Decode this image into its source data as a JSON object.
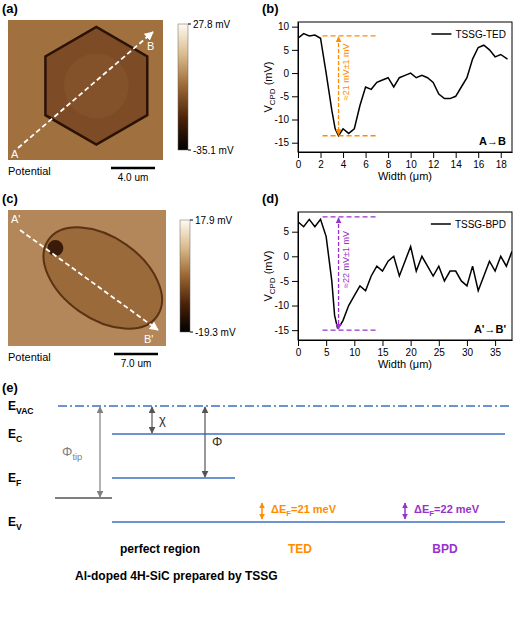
{
  "chart_data": [
    {
      "type": "line",
      "panel_label": "(b)",
      "x": [
        0,
        0.5,
        1,
        1.5,
        2,
        2.5,
        3,
        3.3,
        3.6,
        4,
        4.5,
        5,
        5.5,
        6,
        6.5,
        7,
        7.5,
        8,
        8.5,
        9,
        9.5,
        10,
        10.5,
        11,
        11.5,
        12,
        12.5,
        13,
        13.5,
        14,
        14.5,
        15,
        15.5,
        16,
        16.5,
        17,
        17.5,
        18,
        18.6
      ],
      "series": [
        {
          "name": "TSSG-TED",
          "color": "#000000",
          "values": [
            7.5,
            8.5,
            8,
            8.2,
            7.5,
            0,
            -8,
            -12,
            -13.5,
            -12,
            -13,
            -12,
            -7,
            -3,
            -3.5,
            -2,
            -1.5,
            -1,
            -3,
            -1,
            -0.5,
            0,
            -1,
            -0.5,
            -1,
            -2,
            -4.5,
            -5.5,
            -5.5,
            -5,
            -3,
            -1,
            3,
            5.5,
            6,
            5,
            3.5,
            4,
            3
          ]
        }
      ],
      "xlim": [
        0,
        19
      ],
      "xticks": [
        0,
        2,
        4,
        6,
        8,
        10,
        12,
        14,
        16,
        18
      ],
      "ylim": [
        -17,
        11
      ],
      "yticks": [
        -15,
        -10,
        -5,
        0,
        5,
        10
      ],
      "x_label": "Width (μm)",
      "y_label": {
        "base": "V",
        "sub": "CPD",
        "rest": " (mV)"
      },
      "legend": "top-right",
      "corner_label": "A→B",
      "annotation": {
        "text": "≈21 mV±1 mV",
        "x": 3.6,
        "values": [
          8,
          -13.5
        ],
        "color": "#ff8c00"
      }
    },
    {
      "type": "line",
      "panel_label": "(d)",
      "x": [
        0,
        1,
        2,
        3,
        4,
        5,
        6,
        6.5,
        7,
        7.5,
        8,
        9,
        10,
        11,
        12,
        13,
        14,
        15,
        16,
        17,
        18,
        19,
        20,
        21,
        22,
        23,
        24,
        25,
        26,
        27,
        28,
        29,
        30,
        31,
        32,
        33,
        34,
        35,
        36,
        37,
        38
      ],
      "series": [
        {
          "name": "TSSG-BPD",
          "color": "#000000",
          "values": [
            7,
            6,
            7.5,
            6,
            7.5,
            4,
            -5,
            -12,
            -14.5,
            -14,
            -13,
            -10,
            -8,
            -6,
            -7,
            -4,
            -2,
            -3,
            -1,
            0,
            -4,
            -1,
            2,
            -3,
            0,
            -2,
            -4,
            -2,
            -5,
            -3,
            -3,
            -5,
            -6,
            -2,
            -7,
            -4,
            -1,
            -3,
            0,
            -2,
            1
          ]
        }
      ],
      "xlim": [
        0,
        38
      ],
      "xticks": [
        0,
        5,
        10,
        15,
        20,
        25,
        30,
        35
      ],
      "ylim": [
        -17,
        9
      ],
      "yticks": [
        -15,
        -10,
        -5,
        0,
        5
      ],
      "x_label": "Width (μm)",
      "y_label": {
        "base": "V",
        "sub": "CPD",
        "rest": " (mV)"
      },
      "legend": "top-right",
      "corner_label": "A'→B'",
      "annotation": {
        "text": "≈22 mV±1 mV",
        "x": 7.2,
        "values": [
          8,
          -15
        ],
        "color": "#9932cc"
      }
    }
  ],
  "maps": [
    {
      "label": "(a)",
      "caption": "Potential",
      "start": "A",
      "end": "B",
      "scale_bar": "4.0 um",
      "colorbar": {
        "range": [
          -35.1,
          27.8
        ],
        "ticks": [
          {
            "value": 27.8,
            "label": "27.8 mV"
          },
          {
            "value": -35.1,
            "label": "-35.1 mV"
          }
        ]
      }
    },
    {
      "label": "(c)",
      "caption": "Potential",
      "start": "A'",
      "end": "B'",
      "scale_bar": "7.0 um",
      "colorbar": {
        "range": [
          -19.3,
          17.9
        ],
        "ticks": [
          {
            "value": 17.9,
            "label": "17.9 mV"
          },
          {
            "value": -19.3,
            "label": "-19.3 mV"
          }
        ]
      }
    }
  ],
  "diagram": {
    "label": "(e)",
    "levels": [
      {
        "base": "E",
        "sub": "VAC"
      },
      {
        "base": "E",
        "sub": "C"
      },
      {
        "base": "E",
        "sub": "F"
      },
      {
        "base": "E",
        "sub": "V"
      }
    ],
    "quantities": [
      {
        "base": "Φ",
        "sub": "tip"
      },
      {
        "base": "χ"
      },
      {
        "base": "Φ"
      }
    ],
    "regions": [
      {
        "name": "perfect region",
        "color": "#000000"
      },
      {
        "name": "TED",
        "color": "#ff8c00",
        "shift": {
          "base": "ΔE",
          "sub": "F",
          "rest": "=21 meV"
        }
      },
      {
        "name": "BPD",
        "color": "#9932cc",
        "shift": {
          "base": "ΔE",
          "sub": "F",
          "rest": "=22 meV"
        }
      }
    ],
    "caption": "Al-doped 4H-SiC prepared by TSSG"
  }
}
